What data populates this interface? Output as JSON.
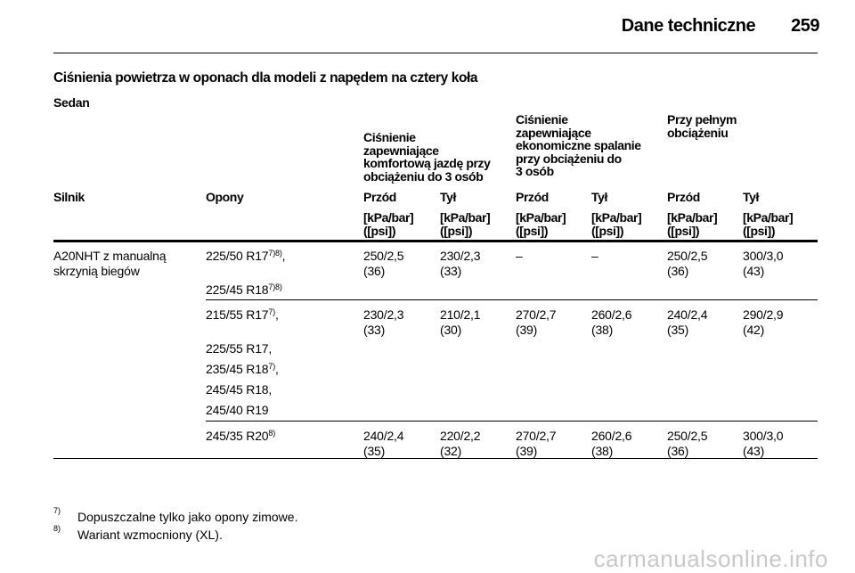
{
  "header": {
    "title": "Dane techniczne",
    "page_number": "259"
  },
  "section_title": "Ciśnienia powietrza w oponach dla modeli z napędem na cztery koła",
  "subsection": "Sedan",
  "groups": {
    "comfort": "Ciśnienie\nzapewniające\nkomfortową jazdę przy\nobciążeniu do 3 osób",
    "eco": "Ciśnienie\nzapewniające\nekonomiczne spalanie\nprzy obciążeniu do\n3 osób",
    "full": "Przy pełnym\nobciążeniu"
  },
  "columns": {
    "engine": "Silnik",
    "tyres": "Opony",
    "front": "Przód",
    "rear": "Tył",
    "unit": "[kPa/bar]\n([psi])"
  },
  "engine": "A20NHT z manualną skrzynią biegów",
  "groups_rows": [
    {
      "tyres": [
        "225/50 R17",
        "225/45 R18"
      ],
      "tyre_sups": [
        "7)8)",
        "7)8)"
      ],
      "tyre_suffix": [
        ",",
        ""
      ],
      "values": [
        [
          "250/2,5",
          "(36)"
        ],
        [
          "230/2,3",
          "(33)"
        ],
        [
          "–",
          ""
        ],
        [
          "–",
          ""
        ],
        [
          "250/2,5",
          "(36)"
        ],
        [
          "300/3,0",
          "(43)"
        ]
      ]
    },
    {
      "tyres": [
        "215/55 R17",
        "225/55 R17",
        "235/45 R18",
        "245/45 R18",
        "245/40 R19"
      ],
      "tyre_sups": [
        "7)",
        "",
        "7)",
        "",
        ""
      ],
      "tyre_suffix": [
        ",",
        ",",
        ",",
        ",",
        ""
      ],
      "values": [
        [
          "230/2,3",
          "(33)"
        ],
        [
          "210/2,1",
          "(30)"
        ],
        [
          "270/2,7",
          "(39)"
        ],
        [
          "260/2,6",
          "(38)"
        ],
        [
          "240/2,4",
          "(35)"
        ],
        [
          "290/2,9",
          "(42)"
        ]
      ]
    },
    {
      "tyres": [
        "245/35 R20"
      ],
      "tyre_sups": [
        "8)"
      ],
      "tyre_suffix": [
        ""
      ],
      "values": [
        [
          "240/2,4",
          "(35)"
        ],
        [
          "220/2,2",
          "(32)"
        ],
        [
          "270/2,7",
          "(39)"
        ],
        [
          "260/2,6",
          "(38)"
        ],
        [
          "250/2,5",
          "(36)"
        ],
        [
          "300/3,0",
          "(43)"
        ]
      ]
    }
  ],
  "footnotes": [
    {
      "mark": "7)",
      "text": "Dopuszczalne tylko jako opony zimowe."
    },
    {
      "mark": "8)",
      "text": "Wariant wzmocniony (XL)."
    }
  ],
  "watermark": "carmanualsonline.info"
}
